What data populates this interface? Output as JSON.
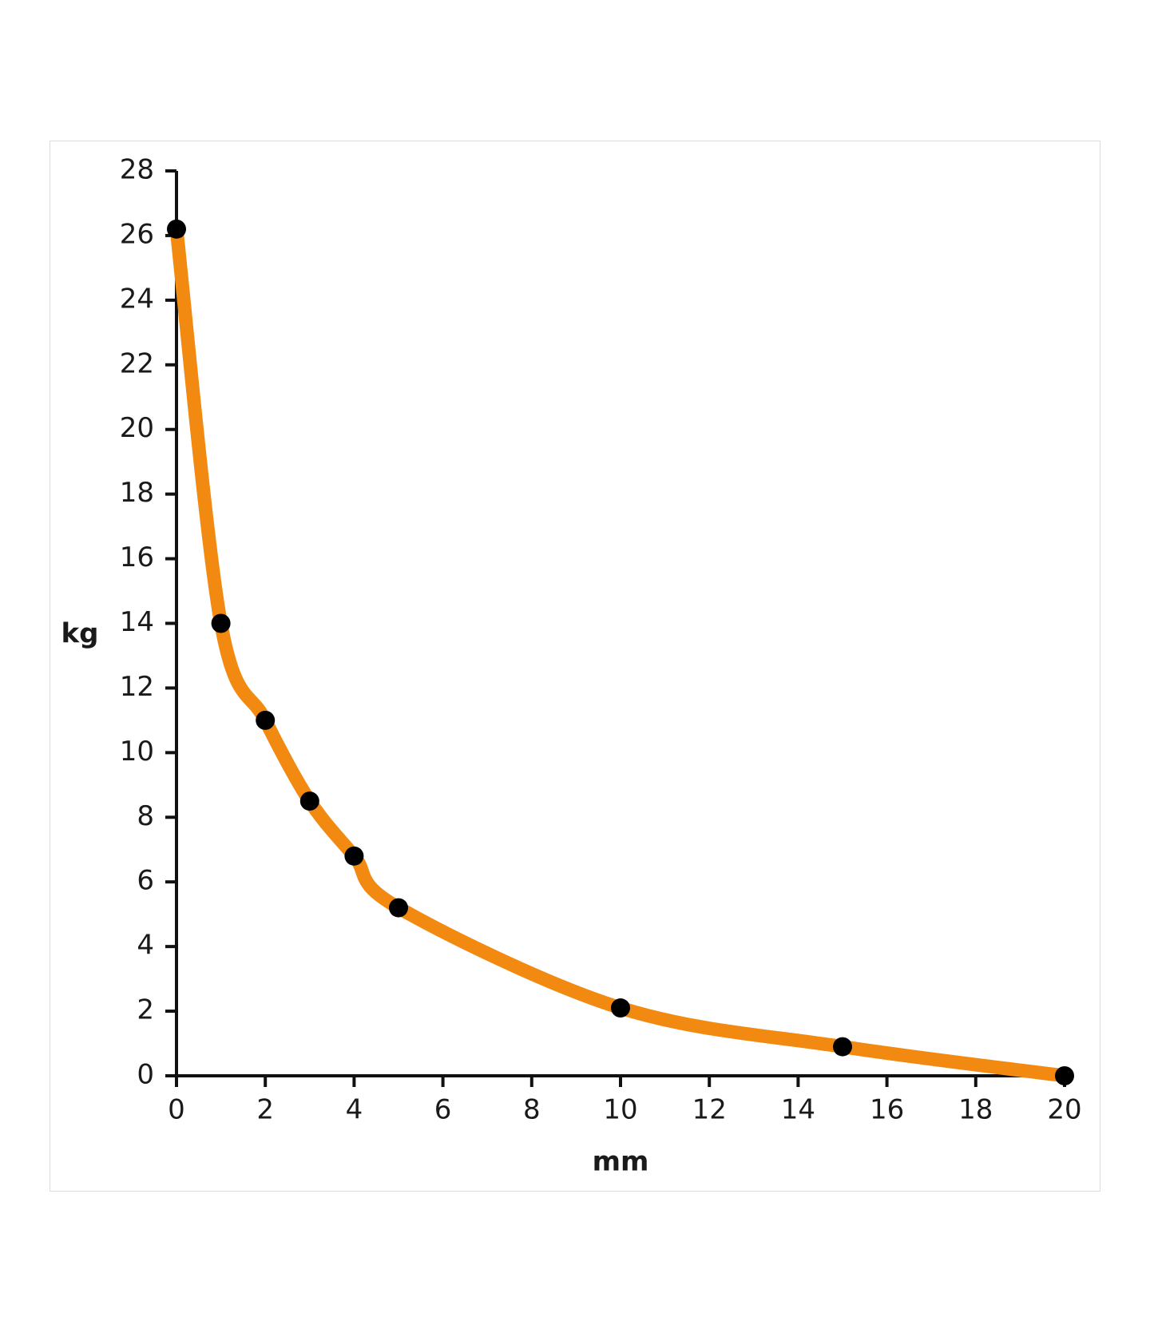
{
  "chart_data": {
    "type": "line",
    "title": "",
    "xlabel": "mm",
    "ylabel": "kg",
    "xlim": [
      0,
      20
    ],
    "ylim": [
      0,
      28
    ],
    "x_ticks": [
      0,
      2,
      4,
      6,
      8,
      10,
      12,
      14,
      16,
      18,
      20
    ],
    "y_ticks": [
      0,
      2,
      4,
      6,
      8,
      10,
      12,
      14,
      16,
      18,
      20,
      22,
      24,
      26,
      28
    ],
    "grid": false,
    "legend": "none",
    "series": [
      {
        "line_color": "#f28a12",
        "marker_color": "#000000",
        "points": [
          {
            "x": 0,
            "y": 26.2
          },
          {
            "x": 1,
            "y": 14
          },
          {
            "x": 2,
            "y": 11
          },
          {
            "x": 3,
            "y": 8.5
          },
          {
            "x": 4,
            "y": 6.8
          },
          {
            "x": 5,
            "y": 5.2
          },
          {
            "x": 10,
            "y": 2.1
          },
          {
            "x": 15,
            "y": 0.9
          },
          {
            "x": 20,
            "y": 0
          }
        ]
      }
    ]
  }
}
